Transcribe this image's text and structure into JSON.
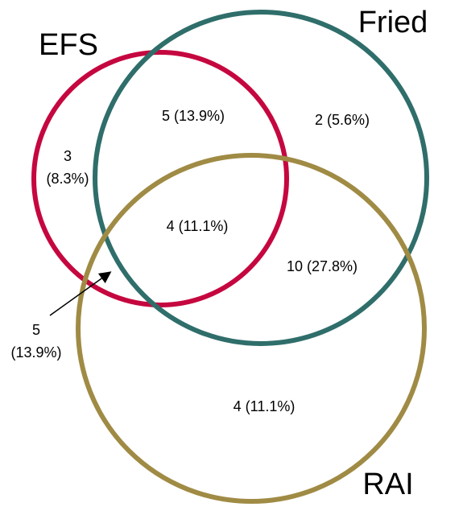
{
  "sets": [
    {
      "label": "EFS",
      "color": "#c5073f"
    },
    {
      "label": "Fried",
      "color": "#2f6e6a"
    },
    {
      "label": "RAI",
      "color": "#a08b45"
    }
  ],
  "regions": [
    {
      "lines": [
        "5 (13.9%)"
      ]
    },
    {
      "lines": [
        "2 (5.6%)"
      ]
    },
    {
      "lines": [
        "3",
        "(8.3%)"
      ]
    },
    {
      "lines": [
        "4 (11.1%)"
      ]
    },
    {
      "lines": [
        "10 (27.8%)"
      ]
    },
    {
      "lines": [
        "5",
        "(13.9%)"
      ]
    },
    {
      "lines": [
        "4 (11.1%)"
      ]
    }
  ]
}
